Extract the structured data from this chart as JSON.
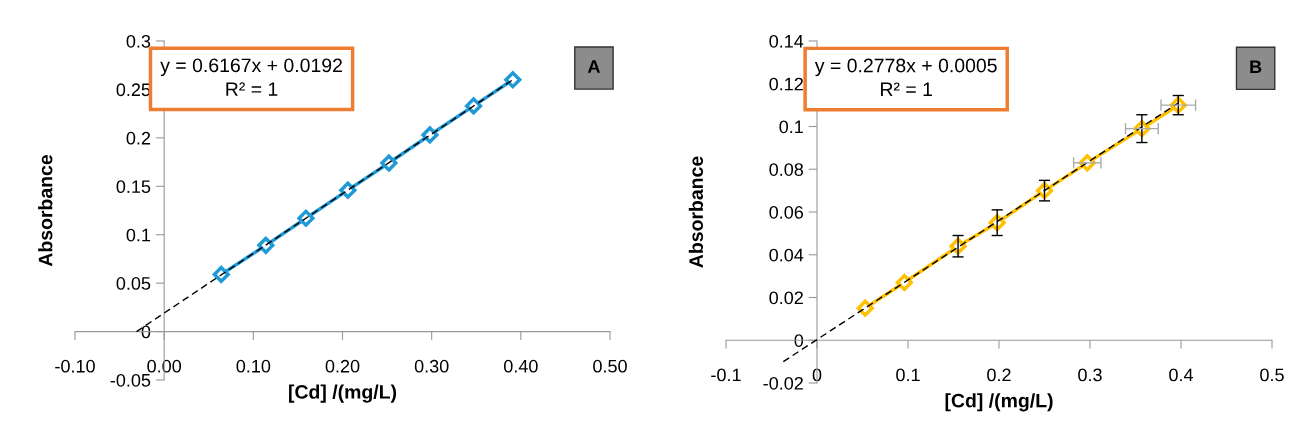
{
  "chart_data": [
    {
      "type": "line",
      "xlabel": "[Cd] /(mg/L)",
      "ylabel": "Absorbance",
      "annotations": [
        "y = 0.6167x + 0.0192\nR² = 1",
        "A"
      ],
      "xlim": [
        -0.1,
        0.5
      ],
      "ylim": [
        -0.05,
        0.3
      ],
      "xticks": [
        {
          "value": -0.1,
          "label": "-0.10"
        },
        {
          "value": 0,
          "label": "0.00"
        },
        {
          "value": 0.1,
          "label": "0.10"
        },
        {
          "value": 0.2,
          "label": "0.20"
        },
        {
          "value": 0.3,
          "label": "0.30"
        },
        {
          "value": 0.4,
          "label": "0.40"
        },
        {
          "value": 0.5,
          "label": "0.50"
        }
      ],
      "yticks": [
        -0.05,
        0,
        0.05,
        0.1,
        0.15,
        0.2,
        0.25,
        0.3
      ],
      "grid": false,
      "series": [
        {
          "color": "#1f9ad6",
          "marker": "diamond",
          "line_style": "solid",
          "x": [
            0.064,
            0.114,
            0.159,
            0.206,
            0.252,
            0.298,
            0.347,
            0.391
          ],
          "values": [
            0.059,
            0.089,
            0.117,
            0.146,
            0.174,
            0.203,
            0.233,
            0.26
          ]
        },
        {
          "color": "#000000",
          "marker": "none",
          "line_style": "dashed",
          "x": [
            -0.031,
            0.391
          ],
          "values": [
            0,
            0.26
          ]
        }
      ]
    },
    {
      "type": "line",
      "xlabel": "[Cd] /(mg/L)",
      "ylabel": "Absorbance",
      "annotations": [
        "y = 0.2778x + 0.0005\nR² = 1",
        "B"
      ],
      "xlim": [
        -0.1,
        0.5
      ],
      "ylim": [
        -0.02,
        0.14
      ],
      "xticks": [
        -0.1,
        0,
        0.1,
        0.2,
        0.3,
        0.4,
        0.5
      ],
      "yticks": [
        -0.02,
        0,
        0.02,
        0.04,
        0.06,
        0.08,
        0.1,
        0.12,
        0.14
      ],
      "grid": false,
      "series": [
        {
          "color": "#ffc000",
          "marker": "diamond",
          "line_style": "solid",
          "x": [
            0.053,
            0.096,
            0.155,
            0.198,
            0.25,
            0.297,
            0.357,
            0.397
          ],
          "values": [
            0.015,
            0.027,
            0.044,
            0.055,
            0.07,
            0.083,
            0.099,
            0.11
          ],
          "errors": [
            null,
            null,
            0.005,
            0.006,
            0.0048,
            null,
            0.0065,
            0.0045
          ],
          "xerrors": [
            null,
            null,
            null,
            null,
            null,
            0.015,
            0.018,
            0.019
          ]
        },
        {
          "color": "#000000",
          "marker": "none",
          "line_style": "dashed",
          "x": [
            -0.037,
            0.397
          ],
          "values": [
            -0.01,
            0.111
          ]
        }
      ]
    }
  ]
}
